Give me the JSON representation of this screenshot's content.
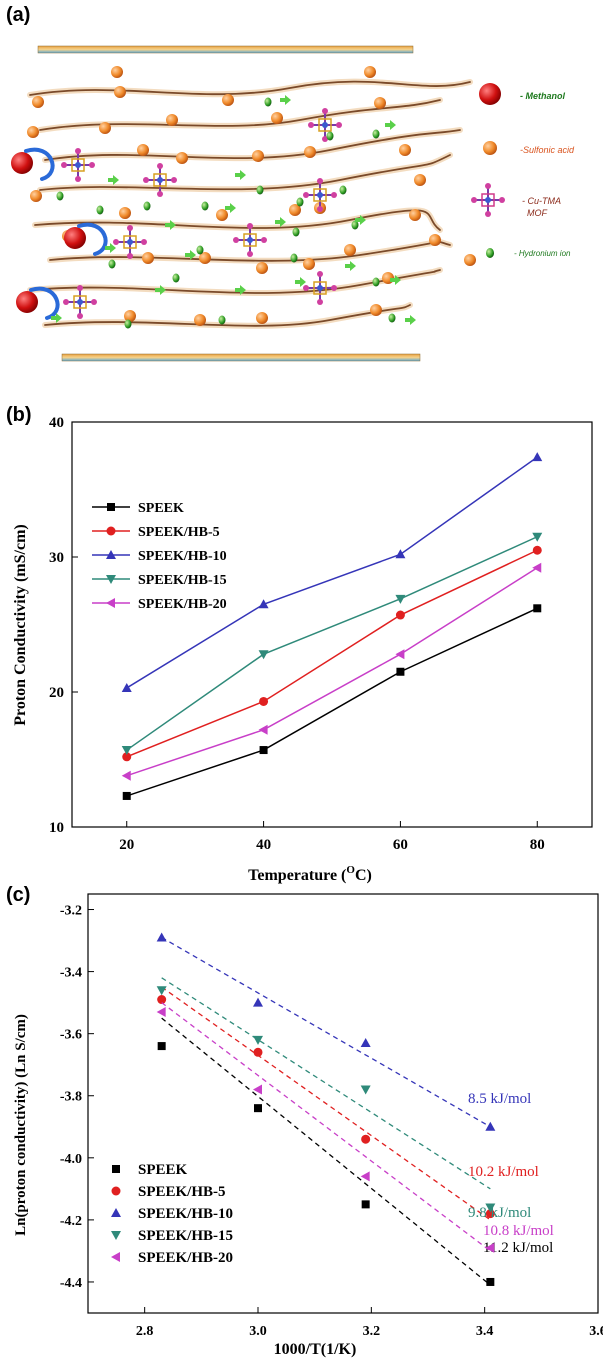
{
  "panels": {
    "a": "(a)",
    "b": "(b)",
    "c": "(c)"
  },
  "schematic": {
    "legend": [
      {
        "label": "- Methanol",
        "color": "#1f7a1f"
      },
      {
        "label": "-Sulfonic acid",
        "color": "#d9531e"
      },
      {
        "label": "- Cu-TMA",
        "color": "#8b2a1a"
      },
      {
        "label": "MOF",
        "color": "#8b2a1a"
      },
      {
        "label": "- Hydronium ion",
        "color": "#1f7a1f"
      }
    ]
  },
  "chart_data": [
    {
      "type": "line",
      "xlabel": "Temperature (",
      "xlabel_unit_sup": "O",
      "xlabel_unit_tail": "C)",
      "ylabel": "Proton Conductivity (mS/cm)",
      "x": [
        20,
        40,
        60,
        80
      ],
      "xticks": [
        "20",
        "40",
        "60",
        "80"
      ],
      "yticks": [
        "10",
        "20",
        "30",
        "40"
      ],
      "xlim": [
        12,
        88
      ],
      "ylim": [
        10,
        40
      ],
      "legend_position": "top-left",
      "series": [
        {
          "name": "SPEEK",
          "color": "#000000",
          "marker": "square",
          "values": [
            12.3,
            15.7,
            21.5,
            26.2
          ]
        },
        {
          "name": "SPEEK/HB-5",
          "color": "#e02020",
          "marker": "circle",
          "values": [
            15.2,
            19.3,
            25.7,
            30.5
          ]
        },
        {
          "name": "SPEEK/HB-10",
          "color": "#3535b8",
          "marker": "triangle-up",
          "values": [
            20.3,
            26.5,
            30.2,
            37.4
          ]
        },
        {
          "name": "SPEEK/HB-15",
          "color": "#2f8a7a",
          "marker": "triangle-down",
          "values": [
            15.7,
            22.8,
            26.9,
            31.5
          ]
        },
        {
          "name": "SPEEK/HB-20",
          "color": "#c83fc8",
          "marker": "triangle-left",
          "values": [
            13.8,
            17.2,
            22.8,
            29.2
          ]
        }
      ]
    },
    {
      "type": "scatter",
      "xlabel": "1000/T(1/K)",
      "ylabel": "Ln(proton conductivity) (Ln S/cm)",
      "x": [
        2.83,
        3.0,
        3.19,
        3.41
      ],
      "xticks": [
        "2.8",
        "3.0",
        "3.2",
        "3.4",
        "3.6"
      ],
      "yticks": [
        "-4.4",
        "-4.2",
        "-4.0",
        "-3.8",
        "-3.6",
        "-3.4",
        "-3.2"
      ],
      "xlim": [
        2.7,
        3.6
      ],
      "ylim": [
        -4.5,
        -3.15
      ],
      "legend_position": "bottom-left",
      "series": [
        {
          "name": "SPEEK",
          "color": "#000000",
          "marker": "square",
          "values": [
            -3.64,
            -3.84,
            -4.15,
            -4.4
          ],
          "fit": [
            -3.55,
            -4.41
          ],
          "annotation": "11.2 kJ/mol"
        },
        {
          "name": "SPEEK/HB-5",
          "color": "#e02020",
          "marker": "circle",
          "values": [
            -3.49,
            -3.66,
            -3.94,
            -4.18
          ],
          "fit": [
            -3.45,
            -4.2
          ],
          "annotation": "10.2 kJ/mol"
        },
        {
          "name": "SPEEK/HB-10",
          "color": "#3535b8",
          "marker": "triangle-up",
          "values": [
            -3.29,
            -3.5,
            -3.63,
            -3.9
          ],
          "fit": [
            -3.29,
            -3.9
          ],
          "annotation": "8.5 kJ/mol"
        },
        {
          "name": "SPEEK/HB-15",
          "color": "#2f8a7a",
          "marker": "triangle-down",
          "values": [
            -3.46,
            -3.62,
            -3.78,
            -4.16
          ],
          "fit": [
            -3.42,
            -4.1
          ],
          "annotation": "9.8 kJ/mol"
        },
        {
          "name": "SPEEK/HB-20",
          "color": "#c83fc8",
          "marker": "triangle-left",
          "values": [
            -3.53,
            -3.78,
            -4.06,
            -4.29
          ],
          "fit": [
            -3.5,
            -4.3
          ],
          "annotation": "10.8 kJ/mol"
        }
      ]
    }
  ]
}
